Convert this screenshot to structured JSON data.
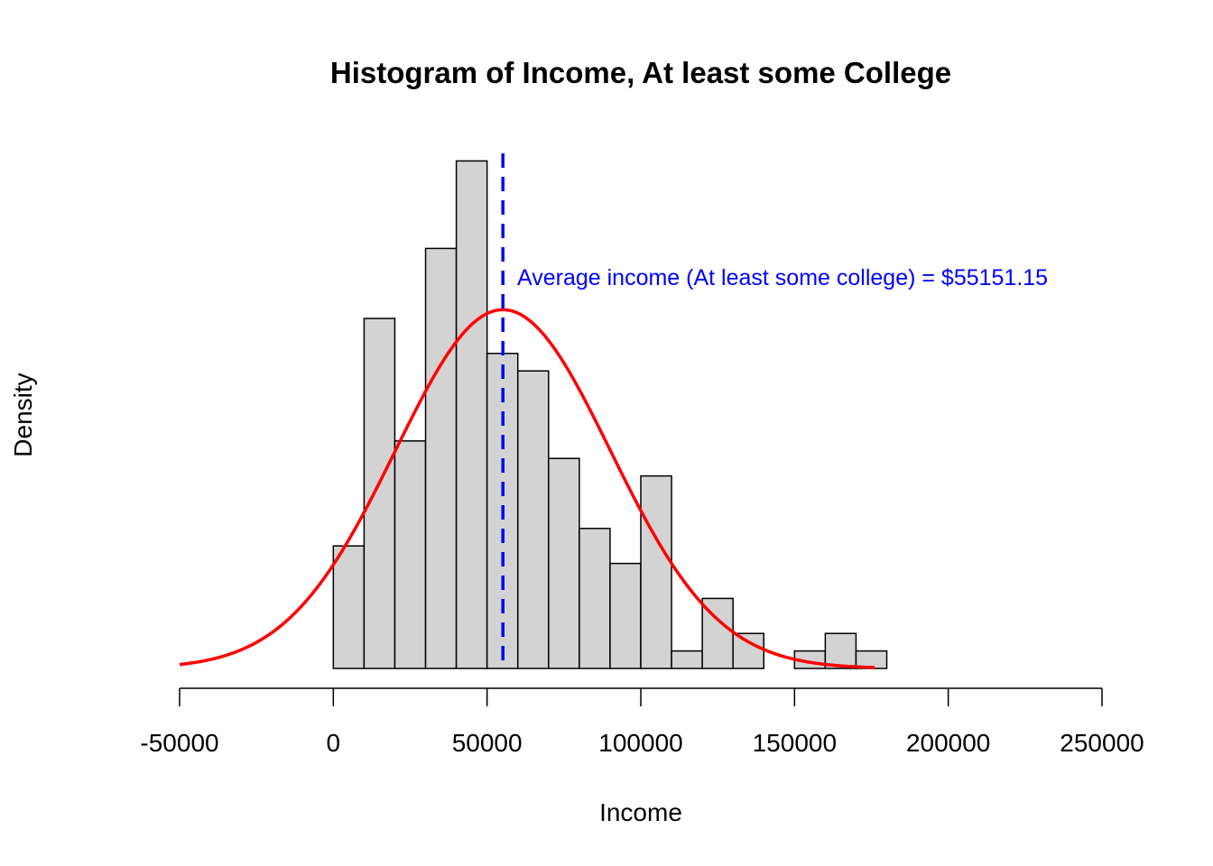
{
  "chart_data": {
    "type": "bar",
    "title": "Histogram of Income, At least some College",
    "xlabel": "Income",
    "ylabel": "Density",
    "xlim": [
      -50000,
      250000
    ],
    "x_ticks": [
      -50000,
      0,
      50000,
      100000,
      150000,
      200000,
      250000
    ],
    "x_tick_labels": [
      "-50000",
      "0",
      "50000",
      "100000",
      "150000",
      "200000",
      "250000"
    ],
    "bin_width": 10000,
    "bins": [
      {
        "start": 0,
        "end": 10000,
        "density": 7
      },
      {
        "start": 10000,
        "end": 20000,
        "density": 20
      },
      {
        "start": 20000,
        "end": 30000,
        "density": 13
      },
      {
        "start": 30000,
        "end": 40000,
        "density": 24
      },
      {
        "start": 40000,
        "end": 50000,
        "density": 29
      },
      {
        "start": 50000,
        "end": 60000,
        "density": 18
      },
      {
        "start": 60000,
        "end": 70000,
        "density": 17
      },
      {
        "start": 70000,
        "end": 80000,
        "density": 12
      },
      {
        "start": 80000,
        "end": 90000,
        "density": 8
      },
      {
        "start": 90000,
        "end": 100000,
        "density": 6
      },
      {
        "start": 100000,
        "end": 110000,
        "density": 11
      },
      {
        "start": 110000,
        "end": 120000,
        "density": 1
      },
      {
        "start": 120000,
        "end": 130000,
        "density": 4
      },
      {
        "start": 130000,
        "end": 140000,
        "density": 2
      },
      {
        "start": 140000,
        "end": 150000,
        "density": 0
      },
      {
        "start": 150000,
        "end": 160000,
        "density": 1
      },
      {
        "start": 160000,
        "end": 170000,
        "density": 2
      },
      {
        "start": 170000,
        "end": 180000,
        "density": 1
      }
    ],
    "normal_curve": {
      "mean": 55151.15,
      "sd": 35000,
      "x_from": -50000,
      "x_to": 176000,
      "peak_density": 20.5,
      "color": "#ff0000"
    },
    "mean_line": {
      "x": 55151.15,
      "color": "#0000ff",
      "style": "dashed"
    },
    "annotation": {
      "text": "Average income (At least some college) = $55151.15",
      "color": "#0000ff"
    },
    "bar_fill": "#d3d3d3",
    "bar_stroke": "#000000",
    "grid": false
  }
}
